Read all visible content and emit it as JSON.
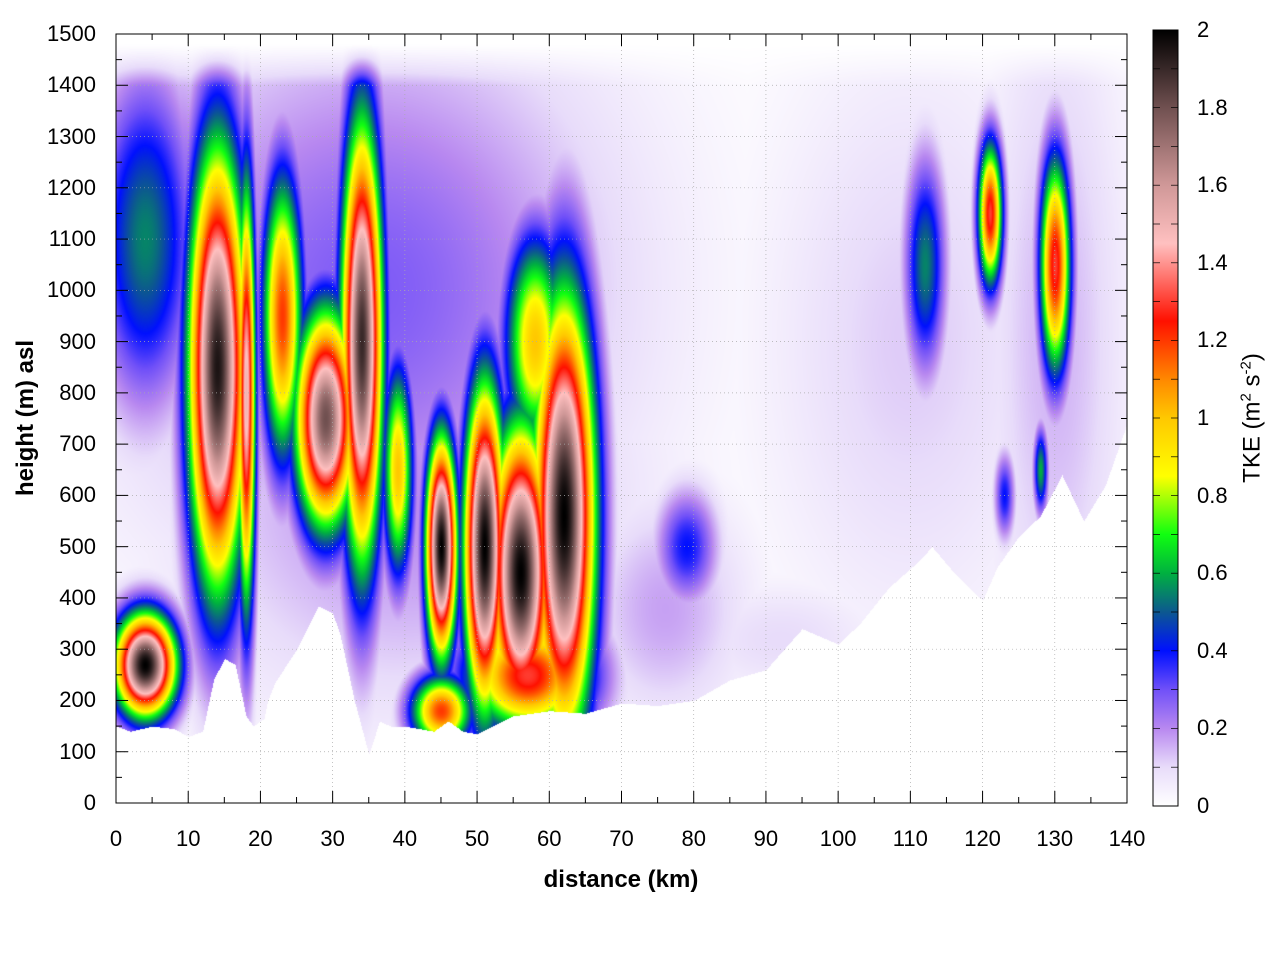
{
  "chart_data": {
    "type": "heatmap",
    "title": "",
    "xlabel": "distance (km)",
    "ylabel": "height (m) asl",
    "colorbar_label": "TKE (m",
    "colorbar_label_sup1": "2",
    "colorbar_label_mid": " s",
    "colorbar_label_sup2": "-2",
    "colorbar_label_end": ")",
    "xlim": [
      0,
      140
    ],
    "ylim": [
      0,
      1500
    ],
    "clim": [
      0,
      2
    ],
    "xticks": [
      "0",
      "10",
      "20",
      "30",
      "40",
      "50",
      "60",
      "70",
      "80",
      "90",
      "100",
      "110",
      "120",
      "130",
      "140"
    ],
    "yticks": [
      "0",
      "100",
      "200",
      "300",
      "400",
      "500",
      "600",
      "700",
      "800",
      "900",
      "1000",
      "1100",
      "1200",
      "1300",
      "1400",
      "1500"
    ],
    "cticks": [
      "0",
      "0.2",
      "0.4",
      "0.6",
      "0.8",
      "1",
      "1.2",
      "1.4",
      "1.6",
      "1.8",
      "2"
    ],
    "grid": true,
    "colormap": [
      [
        0,
        "#ffffff"
      ],
      [
        0.1,
        "#e8dcfa"
      ],
      [
        0.2,
        "#b888f0"
      ],
      [
        0.3,
        "#7050f8"
      ],
      [
        0.4,
        "#0010ff"
      ],
      [
        0.5,
        "#0c5890"
      ],
      [
        0.6,
        "#00b040"
      ],
      [
        0.7,
        "#10ff10"
      ],
      [
        0.85,
        "#ffff00"
      ],
      [
        1.0,
        "#ffc800"
      ],
      [
        1.1,
        "#ff8800"
      ],
      [
        1.25,
        "#ff1000"
      ],
      [
        1.45,
        "#ffc0c0"
      ],
      [
        1.6,
        "#d09898"
      ],
      [
        1.8,
        "#705050"
      ],
      [
        2.0,
        "#000000"
      ]
    ],
    "surface_height": [
      [
        0,
        150
      ],
      [
        2,
        140
      ],
      [
        5,
        150
      ],
      [
        8,
        145
      ],
      [
        10,
        130
      ],
      [
        12,
        140
      ],
      [
        13.5,
        240
      ],
      [
        15,
        282
      ],
      [
        16.5,
        270
      ],
      [
        18,
        170
      ],
      [
        19,
        150
      ],
      [
        20.5,
        165
      ],
      [
        21,
        200
      ],
      [
        22,
        235
      ],
      [
        25,
        300
      ],
      [
        28,
        385
      ],
      [
        30,
        370
      ],
      [
        31,
        330
      ],
      [
        33,
        200
      ],
      [
        35,
        95
      ],
      [
        36.5,
        160
      ],
      [
        38,
        150
      ],
      [
        40,
        150
      ],
      [
        44,
        140
      ],
      [
        46,
        160
      ],
      [
        48,
        140
      ],
      [
        50,
        135
      ],
      [
        55,
        170
      ],
      [
        60,
        180
      ],
      [
        65,
        175
      ],
      [
        70,
        195
      ],
      [
        75,
        190
      ],
      [
        80,
        200
      ],
      [
        85,
        240
      ],
      [
        90,
        260
      ],
      [
        95,
        340
      ],
      [
        100,
        310
      ],
      [
        103,
        350
      ],
      [
        107,
        420
      ],
      [
        111,
        470
      ],
      [
        113,
        500
      ],
      [
        116,
        450
      ],
      [
        120,
        395
      ],
      [
        122,
        460
      ],
      [
        125,
        520
      ],
      [
        128,
        560
      ],
      [
        131,
        640
      ],
      [
        134,
        550
      ],
      [
        137,
        620
      ],
      [
        140,
        740
      ]
    ],
    "top_height": 1480,
    "features": [
      {
        "x": 35,
        "z": 1000,
        "sx": 24,
        "sz": 380,
        "tke": 0.28
      },
      {
        "x": 8,
        "z": 1100,
        "sx": 7,
        "sz": 260,
        "tke": 0.3
      },
      {
        "x": 40,
        "z": 600,
        "sx": 22,
        "sz": 300,
        "tke": 0.2
      },
      {
        "x": 110,
        "z": 900,
        "sx": 14,
        "sz": 400,
        "tke": 0.12
      },
      {
        "x": 130,
        "z": 900,
        "sx": 7,
        "sz": 500,
        "tke": 0.15
      },
      {
        "x": 76,
        "z": 380,
        "sx": 8,
        "sz": 160,
        "tke": 0.17
      },
      {
        "x": 92,
        "z": 320,
        "sx": 10,
        "sz": 80,
        "tke": 0.1
      },
      {
        "x": 4,
        "z": 1100,
        "sx": 5,
        "sz": 230,
        "tke": 0.55
      },
      {
        "x": 14,
        "z": 850,
        "sx": 2.8,
        "sz": 300,
        "tke": 1.95
      },
      {
        "x": 18,
        "z": 800,
        "sx": 0.9,
        "sz": 300,
        "tke": 1.5
      },
      {
        "x": 23,
        "z": 950,
        "sx": 2,
        "sz": 200,
        "tke": 1.2
      },
      {
        "x": 29,
        "z": 750,
        "sx": 3,
        "sz": 150,
        "tke": 1.8
      },
      {
        "x": 34,
        "z": 900,
        "sx": 2,
        "sz": 300,
        "tke": 1.9
      },
      {
        "x": 39,
        "z": 650,
        "sx": 1.5,
        "sz": 150,
        "tke": 1.0
      },
      {
        "x": 45,
        "z": 500,
        "sx": 1.5,
        "sz": 150,
        "tke": 2.0
      },
      {
        "x": 51,
        "z": 500,
        "sx": 2,
        "sz": 220,
        "tke": 2.0
      },
      {
        "x": 56,
        "z": 450,
        "sx": 3,
        "sz": 200,
        "tke": 2.0
      },
      {
        "x": 62,
        "z": 560,
        "sx": 3,
        "sz": 300,
        "tke": 2.0
      },
      {
        "x": 58,
        "z": 900,
        "sx": 3,
        "sz": 150,
        "tke": 1.0
      },
      {
        "x": 4,
        "z": 270,
        "sx": 3,
        "sz": 70,
        "tke": 2.0
      },
      {
        "x": 45,
        "z": 180,
        "sx": 3,
        "sz": 50,
        "tke": 1.2
      },
      {
        "x": 57,
        "z": 250,
        "sx": 6,
        "sz": 80,
        "tke": 1.3
      },
      {
        "x": 79,
        "z": 500,
        "sx": 3,
        "sz": 80,
        "tke": 0.4
      },
      {
        "x": 112,
        "z": 1050,
        "sx": 2,
        "sz": 150,
        "tke": 0.55
      },
      {
        "x": 121,
        "z": 1150,
        "sx": 1.2,
        "sz": 100,
        "tke": 1.3
      },
      {
        "x": 130,
        "z": 1050,
        "sx": 1.5,
        "sz": 150,
        "tke": 1.3
      },
      {
        "x": 128,
        "z": 650,
        "sx": 0.7,
        "sz": 60,
        "tke": 0.6
      },
      {
        "x": 123,
        "z": 600,
        "sx": 1,
        "sz": 60,
        "tke": 0.4
      }
    ]
  }
}
